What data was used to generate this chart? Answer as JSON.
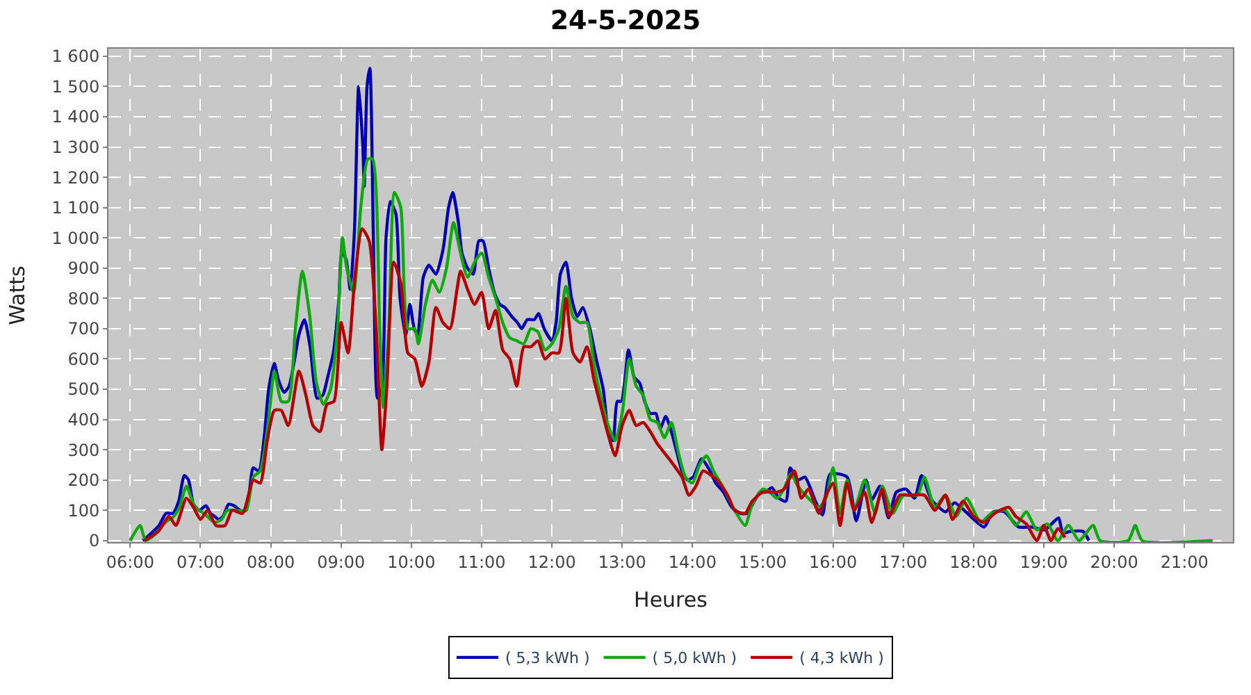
{
  "chart_data": {
    "type": "line",
    "title": "24-5-2025",
    "xlabel": "Heures",
    "ylabel": "Watts",
    "xlim": [
      5.69,
      21.69
    ],
    "ylim": [
      -5,
      1625
    ],
    "xticks": [
      {
        "value": 6,
        "label": "06:00"
      },
      {
        "value": 7,
        "label": "07:00"
      },
      {
        "value": 8,
        "label": "08:00"
      },
      {
        "value": 9,
        "label": "09:00"
      },
      {
        "value": 10,
        "label": "10:00"
      },
      {
        "value": 11,
        "label": "11:00"
      },
      {
        "value": 12,
        "label": "12:00"
      },
      {
        "value": 13,
        "label": "13:00"
      },
      {
        "value": 14,
        "label": "14:00"
      },
      {
        "value": 15,
        "label": "15:00"
      },
      {
        "value": 16,
        "label": "16:00"
      },
      {
        "value": 17,
        "label": "17:00"
      },
      {
        "value": 18,
        "label": "18:00"
      },
      {
        "value": 19,
        "label": "19:00"
      },
      {
        "value": 20,
        "label": "20:00"
      },
      {
        "value": 21,
        "label": "21:00"
      }
    ],
    "yticks": [
      0,
      100,
      200,
      300,
      400,
      500,
      600,
      700,
      800,
      900,
      {
        "value": 1000,
        "label": "1 000"
      },
      {
        "value": 1100,
        "label": "1 100"
      },
      {
        "value": 1200,
        "label": "1 200"
      },
      {
        "value": 1300,
        "label": "1 300"
      },
      {
        "value": 1400,
        "label": "1 400"
      },
      {
        "value": 1500,
        "label": "1 500"
      },
      {
        "value": 1600,
        "label": "1 600"
      }
    ],
    "grid": true,
    "legend": "bottom",
    "line_style": "solid",
    "series": [
      {
        "name": "( 5,3 kWh )",
        "color": "#0000b4",
        "x": [
          6.18,
          6.28,
          6.41,
          6.51,
          6.61,
          6.69,
          6.77,
          6.83,
          6.9,
          6.98,
          7.08,
          7.14,
          7.2,
          7.26,
          7.32,
          7.4,
          7.48,
          7.56,
          7.65,
          7.75,
          7.83,
          7.91,
          7.97,
          8.05,
          8.11,
          8.19,
          8.26,
          8.34,
          8.4,
          8.48,
          8.56,
          8.66,
          8.74,
          8.81,
          8.89,
          8.97,
          9.01,
          9.07,
          9.13,
          9.19,
          9.25,
          9.31,
          9.33,
          9.37,
          9.41,
          9.46,
          9.52,
          9.58,
          9.64,
          9.7,
          9.78,
          9.84,
          9.92,
          9.98,
          10.04,
          10.09,
          10.17,
          10.25,
          10.35,
          10.45,
          10.53,
          10.59,
          10.67,
          10.72,
          10.8,
          10.88,
          10.96,
          11.02,
          11.1,
          11.18,
          11.26,
          11.33,
          11.43,
          11.51,
          11.57,
          11.65,
          11.75,
          11.81,
          11.89,
          12.0,
          12.06,
          12.12,
          12.2,
          12.28,
          12.36,
          12.44,
          12.54,
          12.63,
          12.73,
          12.81,
          12.87,
          12.93,
          12.99,
          13.09,
          13.17,
          13.25,
          13.32,
          13.4,
          13.48,
          13.54,
          13.62,
          13.7,
          13.78,
          13.85,
          13.93,
          14.01,
          14.13,
          14.25,
          14.33,
          14.44,
          14.56,
          14.68,
          14.78,
          14.88,
          14.96,
          15.04,
          15.13,
          15.23,
          15.33,
          15.39,
          15.5,
          15.6,
          15.75,
          15.85,
          15.96,
          16.2,
          16.33,
          16.47,
          16.55,
          16.67,
          16.79,
          16.9,
          17.04,
          17.16,
          17.26,
          17.4,
          17.6,
          17.73,
          17.89,
          18.15,
          18.28,
          18.44,
          18.64,
          18.83,
          19.01,
          19.11,
          19.21,
          19.27,
          19.37,
          19.56,
          19.64
        ],
        "values": [
          0,
          20,
          50,
          90,
          90,
          130,
          215,
          200,
          120,
          100,
          115,
          90,
          80,
          70,
          80,
          120,
          115,
          100,
          100,
          240,
          230,
          350,
          500,
          585,
          530,
          490,
          510,
          600,
          680,
          730,
          640,
          470,
          480,
          540,
          620,
          800,
          950,
          930,
          830,
          1020,
          1500,
          1300,
          1170,
          1500,
          1560,
          1000,
          470,
          500,
          1000,
          1120,
          1080,
          800,
          680,
          780,
          700,
          680,
          870,
          910,
          880,
          960,
          1100,
          1150,
          1050,
          950,
          900,
          880,
          990,
          990,
          900,
          820,
          780,
          770,
          740,
          720,
          700,
          730,
          730,
          750,
          700,
          660,
          720,
          880,
          920,
          800,
          740,
          770,
          700,
          600,
          500,
          350,
          330,
          460,
          460,
          630,
          540,
          520,
          460,
          420,
          420,
          370,
          410,
          360,
          290,
          230,
          200,
          210,
          270,
          230,
          190,
          160,
          110,
          90,
          90,
          130,
          160,
          160,
          175,
          140,
          130,
          240,
          200,
          210,
          130,
          85,
          220,
          210,
          65,
          200,
          135,
          180,
          75,
          160,
          170,
          140,
          215,
          135,
          95,
          125,
          95,
          45,
          95,
          95,
          45,
          45,
          35,
          55,
          75,
          25,
          30,
          30,
          0
        ]
      },
      {
        "name": "( 5,0 kWh )",
        "color": "#10a810",
        "x": [
          6.0,
          6.14,
          6.22,
          6.35,
          6.5,
          6.62,
          6.7,
          6.8,
          6.92,
          7.05,
          7.2,
          7.3,
          7.38,
          7.5,
          7.65,
          7.75,
          7.85,
          7.97,
          8.05,
          8.15,
          8.25,
          8.35,
          8.45,
          8.55,
          8.65,
          8.75,
          8.85,
          8.95,
          9.02,
          9.08,
          9.18,
          9.28,
          9.38,
          9.45,
          9.55,
          9.6,
          9.68,
          9.76,
          9.85,
          9.95,
          10.05,
          10.1,
          10.2,
          10.3,
          10.4,
          10.5,
          10.6,
          10.7,
          10.8,
          10.9,
          11.0,
          11.1,
          11.2,
          11.3,
          11.4,
          11.5,
          11.6,
          11.7,
          11.8,
          11.9,
          12.0,
          12.1,
          12.2,
          12.3,
          12.4,
          12.5,
          12.6,
          12.7,
          12.8,
          12.9,
          13.0,
          13.1,
          13.2,
          13.3,
          13.4,
          13.5,
          13.6,
          13.7,
          13.8,
          13.9,
          14.0,
          14.1,
          14.2,
          14.3,
          14.45,
          14.6,
          14.75,
          14.85,
          15.0,
          15.1,
          15.2,
          15.3,
          15.4,
          15.5,
          15.65,
          15.8,
          15.9,
          16.0,
          16.1,
          16.2,
          16.3,
          16.45,
          16.6,
          16.7,
          16.85,
          17.0,
          17.2,
          17.3,
          17.45,
          17.6,
          17.75,
          17.9,
          18.1,
          18.25,
          18.45,
          18.6,
          18.75,
          18.9,
          19.05,
          19.2,
          19.35,
          19.5,
          19.7,
          19.8,
          20.2,
          20.3,
          20.4,
          21.4
        ],
        "values": [
          0,
          50,
          0,
          20,
          60,
          80,
          110,
          180,
          110,
          90,
          60,
          70,
          100,
          100,
          100,
          210,
          230,
          400,
          560,
          460,
          460,
          700,
          890,
          750,
          520,
          450,
          500,
          700,
          1000,
          900,
          820,
          1100,
          1260,
          1260,
          700,
          440,
          700,
          1150,
          1100,
          700,
          700,
          650,
          780,
          860,
          820,
          900,
          1050,
          950,
          870,
          920,
          950,
          870,
          800,
          720,
          670,
          660,
          650,
          700,
          690,
          630,
          650,
          700,
          840,
          740,
          720,
          720,
          580,
          470,
          380,
          330,
          420,
          600,
          510,
          480,
          400,
          390,
          340,
          390,
          290,
          210,
          190,
          250,
          280,
          230,
          170,
          100,
          50,
          120,
          170,
          160,
          140,
          170,
          220,
          180,
          140,
          110,
          140,
          240,
          90,
          200,
          100,
          200,
          90,
          180,
          90,
          150,
          150,
          210,
          110,
          150,
          80,
          140,
          60,
          90,
          100,
          50,
          95,
          35,
          55,
          0,
          50,
          0,
          50,
          0,
          0,
          50,
          0,
          0
        ]
      },
      {
        "name": "( 4,3 kWh )",
        "color": "#b40000",
        "x": [
          6.2,
          6.4,
          6.55,
          6.65,
          6.8,
          6.9,
          7.0,
          7.1,
          7.22,
          7.35,
          7.45,
          7.6,
          7.75,
          7.85,
          7.95,
          8.05,
          8.15,
          8.25,
          8.4,
          8.5,
          8.6,
          8.7,
          8.8,
          8.9,
          9.0,
          9.1,
          9.2,
          9.3,
          9.4,
          9.5,
          9.58,
          9.65,
          9.75,
          9.85,
          9.95,
          10.05,
          10.15,
          10.25,
          10.35,
          10.45,
          10.55,
          10.65,
          10.7,
          10.8,
          10.9,
          11.0,
          11.1,
          11.2,
          11.3,
          11.4,
          11.5,
          11.6,
          11.7,
          11.8,
          11.9,
          12.0,
          12.1,
          12.2,
          12.3,
          12.4,
          12.5,
          12.6,
          12.7,
          12.8,
          12.9,
          13.0,
          13.1,
          13.2,
          13.3,
          13.4,
          13.5,
          13.7,
          13.85,
          13.95,
          14.05,
          14.15,
          14.35,
          14.5,
          14.6,
          14.75,
          14.85,
          15.0,
          15.2,
          15.3,
          15.45,
          15.55,
          15.65,
          15.8,
          15.9,
          16.0,
          16.1,
          16.2,
          16.3,
          16.45,
          16.55,
          16.7,
          16.8,
          16.95,
          17.1,
          17.3,
          17.45,
          17.6,
          17.7,
          17.85,
          18.0,
          18.15,
          18.3,
          18.5,
          18.6,
          18.75,
          18.9,
          19.0,
          19.1,
          19.2,
          19.3
        ],
        "values": [
          0,
          30,
          80,
          50,
          140,
          110,
          70,
          100,
          50,
          50,
          100,
          90,
          200,
          190,
          330,
          430,
          430,
          380,
          560,
          480,
          380,
          360,
          450,
          460,
          720,
          620,
          880,
          1030,
          990,
          700,
          300,
          500,
          920,
          850,
          620,
          600,
          510,
          590,
          770,
          720,
          700,
          830,
          890,
          830,
          780,
          820,
          700,
          760,
          630,
          600,
          510,
          640,
          640,
          660,
          600,
          620,
          620,
          800,
          620,
          590,
          640,
          530,
          440,
          350,
          280,
          380,
          430,
          380,
          390,
          360,
          320,
          260,
          210,
          150,
          180,
          230,
          200,
          150,
          100,
          90,
          130,
          160,
          160,
          170,
          230,
          140,
          170,
          90,
          150,
          190,
          50,
          190,
          100,
          160,
          60,
          170,
          80,
          150,
          150,
          150,
          100,
          150,
          70,
          130,
          80,
          60,
          90,
          110,
          80,
          55,
          0,
          50,
          0,
          40,
          10
        ]
      }
    ]
  }
}
